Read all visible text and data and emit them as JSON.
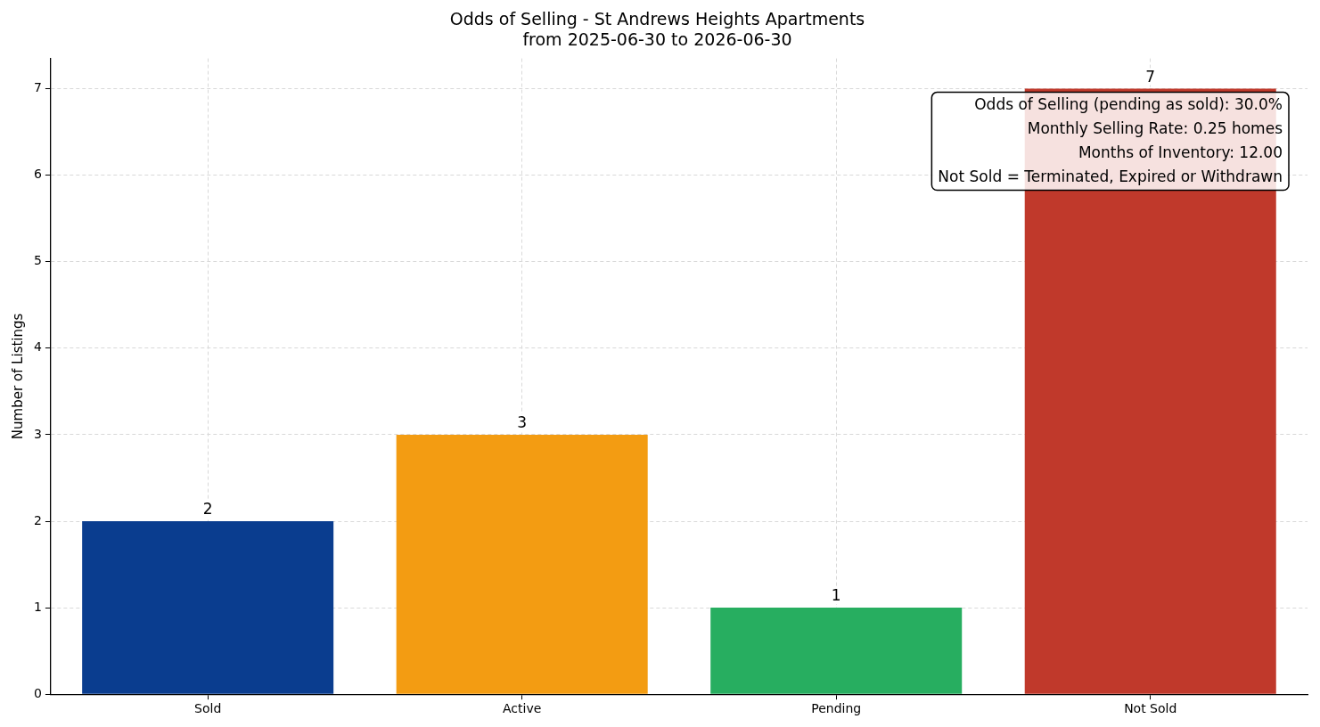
{
  "chart_data": {
    "type": "bar",
    "title": "Odds of Selling - St Andrews Heights Apartments",
    "subtitle": "from 2025-06-30 to 2026-06-30",
    "ylabel": "Number of Listings",
    "categories": [
      "Sold",
      "Active",
      "Pending",
      "Not Sold"
    ],
    "values": [
      2,
      3,
      1,
      7
    ],
    "colors": [
      "#0a3d8f",
      "#f39c12",
      "#27ae60",
      "#c0392b"
    ],
    "ylim": [
      0,
      7.35
    ],
    "yticks": [
      0,
      1,
      2,
      3,
      4,
      5,
      6,
      7
    ],
    "grid": true,
    "data_labels": true,
    "annotations": [
      "Odds of Selling (pending as sold): 30.0%\nMonthly Selling Rate: 0.25 homes\nMonths of Inventory: 12.00\nNot Sold = Terminated, Expired or Withdrawn"
    ]
  }
}
